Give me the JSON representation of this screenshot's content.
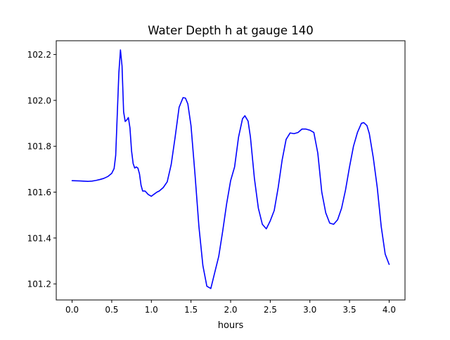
{
  "chart_data": {
    "type": "line",
    "title": "Water Depth h at gauge 140",
    "xlabel": "hours",
    "ylabel": "",
    "xlim": [
      -0.2,
      4.2
    ],
    "ylim": [
      101.13,
      102.26
    ],
    "xticks": [
      0.0,
      0.5,
      1.0,
      1.5,
      2.0,
      2.5,
      3.0,
      3.5,
      4.0
    ],
    "xtick_labels": [
      "0.0",
      "0.5",
      "1.0",
      "1.5",
      "2.0",
      "2.5",
      "3.0",
      "3.5",
      "4.0"
    ],
    "yticks": [
      101.2,
      101.4,
      101.6,
      101.8,
      102.0,
      102.2
    ],
    "ytick_labels": [
      "101.2",
      "101.4",
      "101.6",
      "101.8",
      "102.0",
      "102.2"
    ],
    "grid": false,
    "legend": "none",
    "series": [
      {
        "color": "#0000ff",
        "x": [
          0.0,
          0.1,
          0.2,
          0.25,
          0.3,
          0.35,
          0.4,
          0.45,
          0.5,
          0.53,
          0.55,
          0.57,
          0.59,
          0.61,
          0.63,
          0.65,
          0.67,
          0.69,
          0.71,
          0.73,
          0.75,
          0.77,
          0.79,
          0.81,
          0.83,
          0.85,
          0.87,
          0.89,
          0.92,
          0.96,
          1.0,
          1.03,
          1.07,
          1.1,
          1.15,
          1.2,
          1.25,
          1.3,
          1.35,
          1.4,
          1.43,
          1.46,
          1.5,
          1.55,
          1.6,
          1.65,
          1.7,
          1.75,
          1.8,
          1.85,
          1.9,
          1.95,
          2.0,
          2.05,
          2.1,
          2.15,
          2.18,
          2.22,
          2.25,
          2.3,
          2.35,
          2.4,
          2.45,
          2.5,
          2.55,
          2.6,
          2.65,
          2.7,
          2.75,
          2.8,
          2.85,
          2.9,
          2.95,
          3.0,
          3.05,
          3.1,
          3.15,
          3.2,
          3.25,
          3.3,
          3.35,
          3.4,
          3.45,
          3.5,
          3.55,
          3.6,
          3.65,
          3.68,
          3.72,
          3.75,
          3.8,
          3.85,
          3.9,
          3.95,
          4.0
        ],
        "y": [
          101.65,
          101.649,
          101.647,
          101.648,
          101.651,
          101.655,
          101.66,
          101.668,
          101.682,
          101.703,
          101.76,
          101.94,
          102.12,
          102.22,
          102.15,
          101.95,
          101.908,
          101.915,
          101.925,
          101.88,
          101.78,
          101.725,
          101.705,
          101.71,
          101.705,
          101.68,
          101.63,
          101.605,
          101.605,
          101.59,
          101.582,
          101.59,
          101.6,
          101.605,
          101.62,
          101.645,
          101.72,
          101.84,
          101.97,
          102.012,
          102.01,
          101.985,
          101.89,
          101.68,
          101.45,
          101.28,
          101.19,
          101.18,
          101.25,
          101.32,
          101.43,
          101.55,
          101.65,
          101.71,
          101.84,
          101.92,
          101.933,
          101.91,
          101.84,
          101.66,
          101.53,
          101.46,
          101.44,
          101.475,
          101.52,
          101.62,
          101.74,
          101.83,
          101.858,
          101.855,
          101.86,
          101.875,
          101.875,
          101.87,
          101.86,
          101.77,
          101.6,
          101.51,
          101.465,
          101.46,
          101.48,
          101.53,
          101.61,
          101.71,
          101.8,
          101.86,
          101.9,
          101.903,
          101.89,
          101.855,
          101.75,
          101.62,
          101.45,
          101.33,
          101.285
        ]
      }
    ]
  }
}
